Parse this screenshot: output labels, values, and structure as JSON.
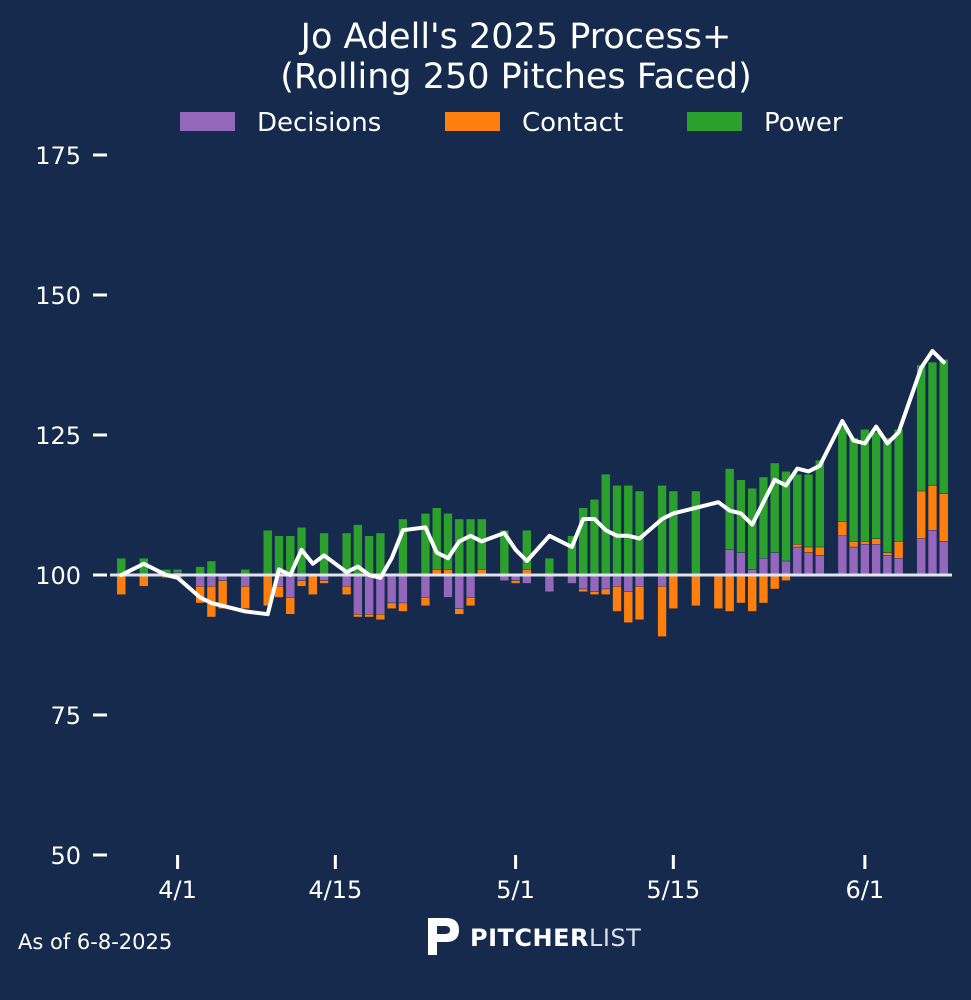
{
  "colors": {
    "background": "#152a4d",
    "decisions": "#9467bd",
    "contact": "#ff7f0e",
    "power": "#2ca02c",
    "line": "#ffffff",
    "baseline": "#dfe3ea"
  },
  "footer": {
    "as_of": "As of 6-8-2025",
    "brand_bold": "PITCHER",
    "brand_light": "LIST",
    "brand_icon": "pitcherlist-p-logo-icon"
  },
  "chart_data": {
    "type": "bar",
    "title_line1": "Jo Adell's 2025 Process+",
    "title_line2": "(Rolling 250 Pitches Faced)",
    "legend": [
      "Decisions",
      "Contact",
      "Power"
    ],
    "legend_position": "top-center",
    "ylim": [
      50,
      180
    ],
    "yticks": [
      50,
      75,
      100,
      125,
      150,
      175
    ],
    "xticks": [
      {
        "label": "4/1",
        "date": "2025-04-01"
      },
      {
        "label": "4/15",
        "date": "2025-04-15"
      },
      {
        "label": "5/1",
        "date": "2025-05-01"
      },
      {
        "label": "5/15",
        "date": "2025-05-15"
      },
      {
        "label": "6/1",
        "date": "2025-06-01"
      }
    ],
    "xlim": [
      "2025-03-26",
      "2025-06-09"
    ],
    "baseline": 100,
    "grid": false,
    "dates": [
      "2025-03-27",
      "2025-03-29",
      "2025-03-31",
      "2025-04-01",
      "2025-04-03",
      "2025-04-04",
      "2025-04-05",
      "2025-04-07",
      "2025-04-09",
      "2025-04-10",
      "2025-04-11",
      "2025-04-12",
      "2025-04-13",
      "2025-04-14",
      "2025-04-16",
      "2025-04-17",
      "2025-04-18",
      "2025-04-19",
      "2025-04-20",
      "2025-04-21",
      "2025-04-23",
      "2025-04-24",
      "2025-04-25",
      "2025-04-26",
      "2025-04-27",
      "2025-04-28",
      "2025-04-30",
      "2025-05-01",
      "2025-05-02",
      "2025-05-04",
      "2025-05-06",
      "2025-05-07",
      "2025-05-08",
      "2025-05-09",
      "2025-05-10",
      "2025-05-11",
      "2025-05-12",
      "2025-05-14",
      "2025-05-15",
      "2025-05-17",
      "2025-05-19",
      "2025-05-20",
      "2025-05-21",
      "2025-05-22",
      "2025-05-23",
      "2025-05-24",
      "2025-05-25",
      "2025-05-26",
      "2025-05-27",
      "2025-05-28",
      "2025-05-30",
      "2025-05-31",
      "2025-06-01",
      "2025-06-02",
      "2025-06-03",
      "2025-06-04",
      "2025-06-06",
      "2025-06-07",
      "2025-06-08"
    ],
    "series": [
      {
        "name": "Decisions",
        "values": [
          0,
          0,
          0,
          0.5,
          -2,
          -2,
          -1,
          -2,
          0,
          -2,
          -4,
          -1,
          0,
          -1,
          -2,
          -7,
          -7,
          -7,
          -5,
          -5,
          -4,
          0,
          -4,
          -6,
          -4,
          0,
          -1,
          -1,
          -1.5,
          -3,
          -1.5,
          -2.5,
          -3,
          -2.5,
          -2,
          -3,
          -2,
          -2,
          0,
          0,
          0,
          4.5,
          4,
          1,
          3,
          4,
          2.5,
          5,
          4,
          3.5,
          7,
          5,
          5.5,
          5.5,
          3.5,
          3,
          6.5,
          8,
          6
        ]
      },
      {
        "name": "Contact",
        "values": [
          -3.5,
          -2,
          -0.5,
          -0.5,
          -3,
          -5.5,
          -5,
          -4,
          -5.5,
          -2,
          -3,
          -1,
          -3.5,
          -0.5,
          -1.5,
          -0.5,
          -0.5,
          -1,
          -1,
          -1.5,
          -1.5,
          1,
          1,
          -1,
          -1.5,
          1,
          0,
          -0.5,
          1,
          0,
          0,
          -0.5,
          -0.5,
          -1,
          -4.5,
          -5.5,
          -6,
          -9,
          -6,
          -5.5,
          -6,
          -6.5,
          -5,
          -6.5,
          -5,
          -2.5,
          -1,
          0.5,
          1,
          1.5,
          2.5,
          1,
          0.5,
          1,
          0.5,
          3,
          8.5,
          8,
          8.5
        ]
      },
      {
        "name": "Power",
        "values": [
          3,
          3,
          1,
          0.5,
          1.5,
          2.5,
          0,
          1,
          8,
          7,
          7,
          8.5,
          0,
          7.5,
          7.5,
          9,
          7,
          7.5,
          0,
          10,
          11,
          11,
          10,
          10,
          10,
          9,
          8,
          0,
          7,
          3,
          7,
          12,
          13.5,
          18,
          16,
          16,
          15,
          16,
          15,
          15,
          0,
          14.5,
          13,
          14.5,
          14.5,
          16,
          16,
          12.5,
          13,
          15.5,
          17,
          18.5,
          20,
          19,
          20.5,
          20,
          22.5,
          22,
          24
        ]
      },
      {
        "name": "Process+",
        "values": [
          100,
          102,
          100,
          99.5,
          96,
          95,
          94.5,
          93.5,
          93,
          101,
          100,
          104.5,
          102,
          103.5,
          100.5,
          101.5,
          100,
          99.5,
          103,
          108,
          108.5,
          104,
          103,
          106,
          107,
          106,
          107.5,
          104.5,
          102.5,
          107,
          105,
          110,
          110,
          108,
          107,
          107,
          106.5,
          110,
          111,
          112,
          113,
          111.5,
          111,
          109,
          113,
          117,
          116,
          119,
          118.5,
          119.5,
          127.5,
          124,
          123.5,
          126.5,
          123.5,
          125.5,
          137,
          140,
          138
        ]
      }
    ]
  }
}
